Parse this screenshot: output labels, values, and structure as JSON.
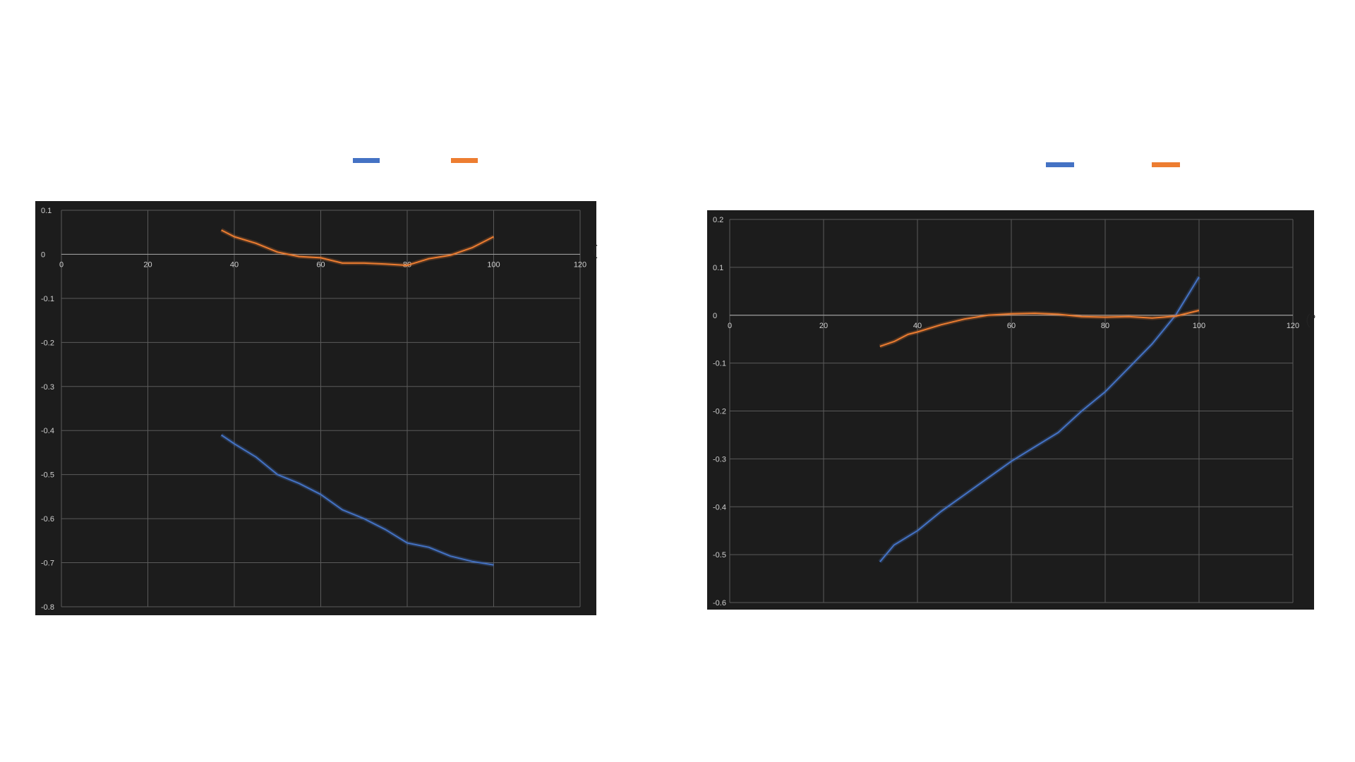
{
  "colors": {
    "series1": "#4472c4",
    "series2": "#ed7d31",
    "plot_bg": "#1c1c1c",
    "grid": "#5a5a5a"
  },
  "right_edge_label": "(°",
  "left_edge_label": "(",
  "chart_data": [
    {
      "type": "line",
      "grid": true,
      "legend": "top",
      "xlim": [
        0,
        120
      ],
      "ylim": [
        -0.8,
        0.1
      ],
      "x_ticks": [
        0,
        20,
        40,
        60,
        80,
        100,
        120
      ],
      "y_ticks": [
        0.1,
        0,
        -0.1,
        -0.2,
        -0.3,
        -0.4,
        -0.5,
        -0.6,
        -0.7,
        -0.8
      ],
      "series": [
        {
          "color": "#4472c4",
          "x": [
            37,
            40,
            45,
            50,
            55,
            60,
            65,
            70,
            75,
            80,
            85,
            90,
            95,
            100
          ],
          "y": [
            -0.41,
            -0.43,
            -0.46,
            -0.5,
            -0.52,
            -0.545,
            -0.58,
            -0.6,
            -0.625,
            -0.655,
            -0.665,
            -0.685,
            -0.697,
            -0.705
          ]
        },
        {
          "color": "#ed7d31",
          "x": [
            37,
            40,
            45,
            50,
            55,
            60,
            65,
            70,
            75,
            80,
            85,
            90,
            95,
            100
          ],
          "y": [
            0.055,
            0.04,
            0.025,
            0.005,
            -0.005,
            -0.008,
            -0.02,
            -0.02,
            -0.022,
            -0.025,
            -0.01,
            -0.002,
            0.015,
            0.04
          ]
        }
      ]
    },
    {
      "type": "line",
      "grid": true,
      "legend": "top-right",
      "xlim": [
        0,
        120
      ],
      "ylim": [
        -0.6,
        0.2
      ],
      "x_ticks": [
        0,
        20,
        40,
        60,
        80,
        100,
        120
      ],
      "y_ticks": [
        0.2,
        0.1,
        0,
        -0.1,
        -0.2,
        -0.3,
        -0.4,
        -0.5,
        -0.6
      ],
      "series": [
        {
          "color": "#4472c4",
          "x": [
            32,
            35,
            40,
            45,
            50,
            55,
            60,
            65,
            70,
            75,
            80,
            85,
            90,
            95,
            100
          ],
          "y": [
            -0.515,
            -0.48,
            -0.45,
            -0.41,
            -0.375,
            -0.34,
            -0.305,
            -0.275,
            -0.245,
            -0.2,
            -0.16,
            -0.11,
            -0.06,
            0.0,
            0.08
          ]
        },
        {
          "color": "#ed7d31",
          "x": [
            32,
            35,
            38,
            40,
            45,
            50,
            55,
            60,
            65,
            70,
            75,
            80,
            85,
            90,
            95,
            100
          ],
          "y": [
            -0.065,
            -0.055,
            -0.04,
            -0.035,
            -0.02,
            -0.008,
            0.0,
            0.003,
            0.004,
            0.002,
            -0.003,
            -0.004,
            -0.003,
            -0.006,
            -0.002,
            0.01
          ]
        }
      ]
    }
  ]
}
